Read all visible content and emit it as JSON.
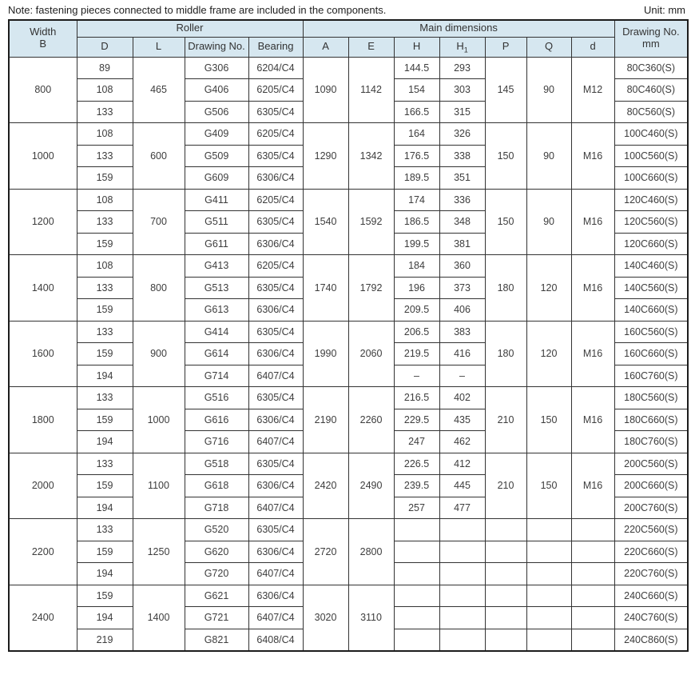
{
  "note": "Note: fastening pieces connected to middle frame are included in the components.",
  "unit_label": "Unit: mm",
  "colors": {
    "header_bg": "#d6e7f0",
    "border_outer": "#1c1c1c",
    "border_inner": "#333333",
    "text": "#3d3d3d"
  },
  "table": {
    "header": {
      "width_line1": "Width",
      "width_line2": "B",
      "roller": "Roller",
      "main_dimensions": "Main dimensions",
      "drawing_no_line1": "Drawing No.",
      "drawing_no_line2": "mm",
      "d": "D",
      "l": "L",
      "drawing": "Drawing No.",
      "bearing": "Bearing",
      "a": "A",
      "e": "E",
      "h": "H",
      "h1_base": "H",
      "h1_sub": "1",
      "p": "P",
      "q": "Q",
      "d_small": "d"
    },
    "groups": [
      {
        "width_b": "800",
        "l": "465",
        "a": "1090",
        "e": "1142",
        "p": "145",
        "q": "90",
        "d_thread": "M12",
        "pqd_merged": true,
        "rows": [
          {
            "d": "89",
            "drawing": "G306",
            "bearing": "6204/C4",
            "h": "144.5",
            "h1": "293",
            "drawing_no": "80C360(S)"
          },
          {
            "d": "108",
            "drawing": "G406",
            "bearing": "6205/C4",
            "h": "154",
            "h1": "303",
            "drawing_no": "80C460(S)"
          },
          {
            "d": "133",
            "drawing": "G506",
            "bearing": "6305/C4",
            "h": "166.5",
            "h1": "315",
            "drawing_no": "80C560(S)"
          }
        ]
      },
      {
        "width_b": "1000",
        "l": "600",
        "a": "1290",
        "e": "1342",
        "p": "150",
        "q": "90",
        "d_thread": "M16",
        "pqd_merged": true,
        "rows": [
          {
            "d": "108",
            "drawing": "G409",
            "bearing": "6205/C4",
            "h": "164",
            "h1": "326",
            "drawing_no": "100C460(S)"
          },
          {
            "d": "133",
            "drawing": "G509",
            "bearing": "6305/C4",
            "h": "176.5",
            "h1": "338",
            "drawing_no": "100C560(S)"
          },
          {
            "d": "159",
            "drawing": "G609",
            "bearing": "6306/C4",
            "h": "189.5",
            "h1": "351",
            "drawing_no": "100C660(S)"
          }
        ]
      },
      {
        "width_b": "1200",
        "l": "700",
        "a": "1540",
        "e": "1592",
        "p": "150",
        "q": "90",
        "d_thread": "M16",
        "pqd_merged": true,
        "rows": [
          {
            "d": "108",
            "drawing": "G411",
            "bearing": "6205/C4",
            "h": "174",
            "h1": "336",
            "drawing_no": "120C460(S)"
          },
          {
            "d": "133",
            "drawing": "G511",
            "bearing": "6305/C4",
            "h": "186.5",
            "h1": "348",
            "drawing_no": "120C560(S)"
          },
          {
            "d": "159",
            "drawing": "G611",
            "bearing": "6306/C4",
            "h": "199.5",
            "h1": "381",
            "drawing_no": "120C660(S)"
          }
        ]
      },
      {
        "width_b": "1400",
        "l": "800",
        "a": "1740",
        "e": "1792",
        "p": "180",
        "q": "120",
        "d_thread": "M16",
        "pqd_merged": true,
        "rows": [
          {
            "d": "108",
            "drawing": "G413",
            "bearing": "6205/C4",
            "h": "184",
            "h1": "360",
            "drawing_no": "140C460(S)"
          },
          {
            "d": "133",
            "drawing": "G513",
            "bearing": "6305/C4",
            "h": "196",
            "h1": "373",
            "drawing_no": "140C560(S)"
          },
          {
            "d": "159",
            "drawing": "G613",
            "bearing": "6306/C4",
            "h": "209.5",
            "h1": "406",
            "drawing_no": "140C660(S)"
          }
        ]
      },
      {
        "width_b": "1600",
        "l": "900",
        "a": "1990",
        "e": "2060",
        "p": "180",
        "q": "120",
        "d_thread": "M16",
        "pqd_merged": true,
        "rows": [
          {
            "d": "133",
            "drawing": "G414",
            "bearing": "6305/C4",
            "h": "206.5",
            "h1": "383",
            "drawing_no": "160C560(S)"
          },
          {
            "d": "159",
            "drawing": "G614",
            "bearing": "6306/C4",
            "h": "219.5",
            "h1": "416",
            "drawing_no": "160C660(S)"
          },
          {
            "d": "194",
            "drawing": "G714",
            "bearing": "6407/C4",
            "h": "–",
            "h1": "–",
            "drawing_no": "160C760(S)"
          }
        ]
      },
      {
        "width_b": "1800",
        "l": "1000",
        "a": "2190",
        "e": "2260",
        "p": "210",
        "q": "150",
        "d_thread": "M16",
        "pqd_merged": true,
        "rows": [
          {
            "d": "133",
            "drawing": "G516",
            "bearing": "6305/C4",
            "h": "216.5",
            "h1": "402",
            "drawing_no": "180C560(S)"
          },
          {
            "d": "159",
            "drawing": "G616",
            "bearing": "6306/C4",
            "h": "229.5",
            "h1": "435",
            "drawing_no": "180C660(S)"
          },
          {
            "d": "194",
            "drawing": "G716",
            "bearing": "6407/C4",
            "h": "247",
            "h1": "462",
            "drawing_no": "180C760(S)"
          }
        ]
      },
      {
        "width_b": "2000",
        "l": "1100",
        "a": "2420",
        "e": "2490",
        "p": "210",
        "q": "150",
        "d_thread": "M16",
        "pqd_merged": true,
        "rows": [
          {
            "d": "133",
            "drawing": "G518",
            "bearing": "6305/C4",
            "h": "226.5",
            "h1": "412",
            "drawing_no": "200C560(S)"
          },
          {
            "d": "159",
            "drawing": "G618",
            "bearing": "6306/C4",
            "h": "239.5",
            "h1": "445",
            "drawing_no": "200C660(S)"
          },
          {
            "d": "194",
            "drawing": "G718",
            "bearing": "6407/C4",
            "h": "257",
            "h1": "477",
            "drawing_no": "200C760(S)"
          }
        ]
      },
      {
        "width_b": "2200",
        "l": "1250",
        "a": "2720",
        "e": "2800",
        "p": "",
        "q": "",
        "d_thread": "",
        "pqd_merged": false,
        "rows": [
          {
            "d": "133",
            "drawing": "G520",
            "bearing": "6305/C4",
            "h": "",
            "h1": "",
            "drawing_no": "220C560(S)"
          },
          {
            "d": "159",
            "drawing": "G620",
            "bearing": "6306/C4",
            "h": "",
            "h1": "",
            "drawing_no": "220C660(S)"
          },
          {
            "d": "194",
            "drawing": "G720",
            "bearing": "6407/C4",
            "h": "",
            "h1": "",
            "drawing_no": "220C760(S)"
          }
        ]
      },
      {
        "width_b": "2400",
        "l": "1400",
        "a": "3020",
        "e": "3110",
        "p": "",
        "q": "",
        "d_thread": "",
        "pqd_merged": false,
        "rows": [
          {
            "d": "159",
            "drawing": "G621",
            "bearing": "6306/C4",
            "h": "",
            "h1": "",
            "drawing_no": "240C660(S)"
          },
          {
            "d": "194",
            "drawing": "G721",
            "bearing": "6407/C4",
            "h": "",
            "h1": "",
            "drawing_no": "240C760(S)"
          },
          {
            "d": "219",
            "drawing": "G821",
            "bearing": "6408/C4",
            "h": "",
            "h1": "",
            "drawing_no": "240C860(S)"
          }
        ]
      }
    ]
  }
}
